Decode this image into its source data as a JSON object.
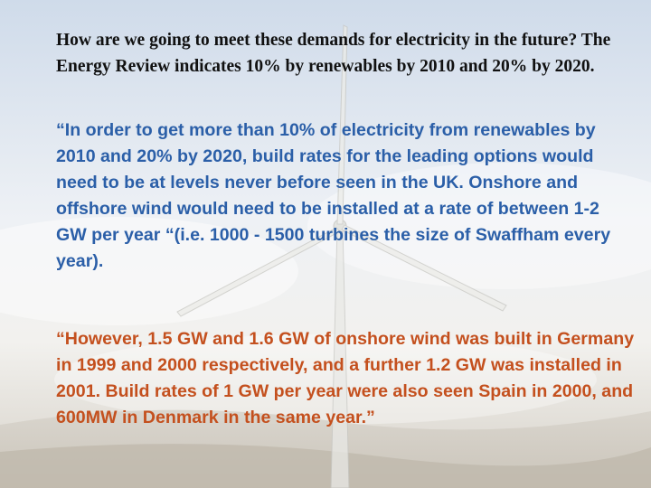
{
  "heading": "How are we going to meet these demands for electricity in the future?   The Energy Review indicates 10% by renewables by 2010 and 20% by 2020.",
  "quotes": [
    "“In order to get more than 10% of electricity from renewables by 2010 and 20% by 2020, build rates for the leading options would need to be at levels never before seen in the UK. Onshore and offshore wind would need to be installed at a rate of between 1-2 GW per year “(i.e. 1000 - 1500 turbines the size of Swaffham every year).",
    "“However, 1.5 GW and 1.6 GW of onshore wind was built in Germany in 1999 and 2000 respectively, and a further 1.2 GW was installed in 2001. Build rates of 1 GW per year were also seen Spain in 2000, and 600MW in Denmark in the same year.”"
  ],
  "colors": {
    "heading": "#111111",
    "quote_1": "#2b5fa8",
    "quote_2": "#c4501e"
  }
}
